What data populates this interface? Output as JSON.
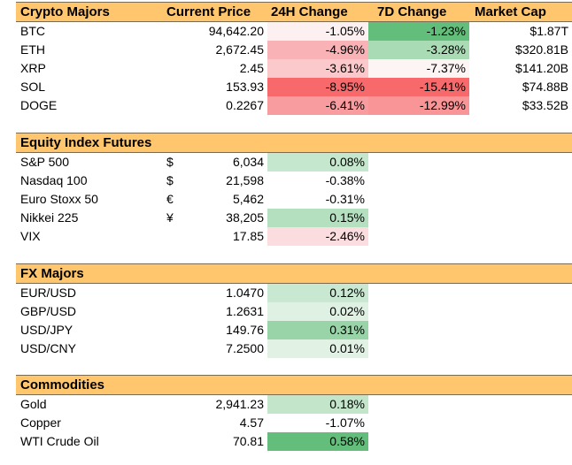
{
  "crypto": {
    "headers": {
      "name": "Crypto Majors",
      "price": "Current Price",
      "h24": "24H Change",
      "d7": "7D Change",
      "mcap": "Market Cap"
    },
    "rows": [
      {
        "name": "BTC",
        "price": "94,642.20",
        "h24": "-1.05%",
        "d7": "-1.23%",
        "mcap": "$1.87T",
        "h24_bg": "#fdf0f1",
        "d7_bg": "#63be7b"
      },
      {
        "name": "ETH",
        "price": "2,672.45",
        "h24": "-4.96%",
        "d7": "-3.28%",
        "mcap": "$320.81B",
        "h24_bg": "#f9b3b6",
        "d7_bg": "#a9dbb5"
      },
      {
        "name": "XRP",
        "price": "2.45",
        "h24": "-3.61%",
        "d7": "-7.37%",
        "mcap": "$141.20B",
        "h24_bg": "#fbc9cb",
        "d7_bg": "#fdf4f4"
      },
      {
        "name": "SOL",
        "price": "153.93",
        "h24": "-8.95%",
        "d7": "-15.41%",
        "mcap": "$74.88B",
        "h24_bg": "#f8696b",
        "d7_bg": "#f8696b"
      },
      {
        "name": "DOGE",
        "price": "0.2267",
        "h24": "-6.41%",
        "d7": "-12.99%",
        "mcap": "$33.52B",
        "h24_bg": "#f99c9f",
        "d7_bg": "#f99597"
      }
    ]
  },
  "equity": {
    "header": "Equity Index Futures",
    "rows": [
      {
        "name": "S&P 500",
        "sym": "$",
        "price": "6,034",
        "chg": "0.08%",
        "bg": "#c5e7cd"
      },
      {
        "name": "Nasdaq 100",
        "sym": "$",
        "price": "21,598",
        "chg": "-0.38%",
        "bg": "#ffffff"
      },
      {
        "name": "Euro Stoxx 50",
        "sym": "€",
        "price": "5,462",
        "chg": "-0.31%",
        "bg": "#ffffff"
      },
      {
        "name": "Nikkei 225",
        "sym": "¥",
        "price": "38,205",
        "chg": "0.15%",
        "bg": "#b5e0c0"
      },
      {
        "name": "VIX",
        "sym": "",
        "price": "17.85",
        "chg": "-2.46%",
        "bg": "#fbdde0"
      }
    ]
  },
  "fx": {
    "header": "FX Majors",
    "rows": [
      {
        "name": "EUR/USD",
        "price": "1.0470",
        "chg": "0.12%",
        "bg": "#c9e8d1"
      },
      {
        "name": "GBP/USD",
        "price": "1.2631",
        "chg": "0.02%",
        "bg": "#dff1e3"
      },
      {
        "name": "USD/JPY",
        "price": "149.76",
        "chg": "0.31%",
        "bg": "#98d4a7"
      },
      {
        "name": "USD/CNY",
        "price": "7.2500",
        "chg": "0.01%",
        "bg": "#e1f2e5"
      }
    ]
  },
  "commodities": {
    "header": "Commodities",
    "rows": [
      {
        "name": "Gold",
        "price": "2,941.23",
        "chg": "0.18%",
        "bg": "#c3e6cb"
      },
      {
        "name": "Copper",
        "price": "4.57",
        "chg": "-1.07%",
        "bg": "#ffffff"
      },
      {
        "name": "WTI Crude Oil",
        "price": "70.81",
        "chg": "0.58%",
        "bg": "#63be7b"
      }
    ]
  }
}
